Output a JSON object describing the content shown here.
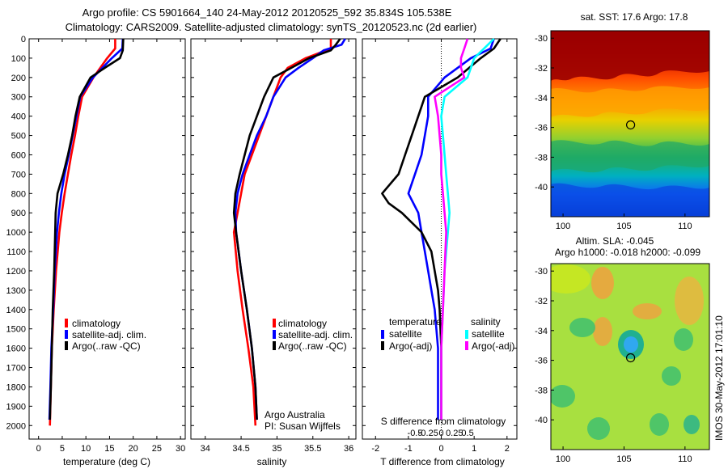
{
  "header": {
    "line1": "Argo profile: CS 5901664_140 24-May-2012 20120525_592 35.834S 105.538E",
    "line2": "Climatology: CARS2009. Satellite-adjusted climatology: synTS_20120523.nc (2d earlier)"
  },
  "credits": {
    "org": "Argo Australia",
    "pi": "PI: Susan Wijffels"
  },
  "timestamp": "IMOS 30-May-2012 17:01:10",
  "colors": {
    "climatology": "#ff0000",
    "satellite": "#0000ff",
    "argo": "#000000",
    "sal_satellite": "#00ffff",
    "sal_argo": "#ff00ff"
  },
  "chart_data": [
    {
      "type": "line",
      "xlabel": "temperature (deg C)",
      "ylabel": "",
      "xlim": [
        -2,
        31
      ],
      "ylim": [
        2070,
        0
      ],
      "xticks": [
        "0",
        "5",
        "10",
        "15",
        "20",
        "25",
        "30"
      ],
      "xtick_values": [
        0,
        5,
        10,
        15,
        20,
        25,
        30
      ],
      "yticks": [
        "0",
        "100",
        "200",
        "300",
        "400",
        "500",
        "600",
        "700",
        "800",
        "900",
        "1000",
        "1100",
        "1200",
        "1300",
        "1400",
        "1500",
        "1600",
        "1700",
        "1800",
        "1900",
        "2000"
      ],
      "ytick_values": [
        0,
        100,
        200,
        300,
        400,
        500,
        600,
        700,
        800,
        900,
        1000,
        1100,
        1200,
        1300,
        1400,
        1500,
        1600,
        1700,
        1800,
        1900,
        2000
      ],
      "legend": [
        "climatology",
        "satellite-adj. clim.",
        "Argo(..raw -QC)"
      ],
      "series": [
        {
          "name": "climatology",
          "color": "#ff0000",
          "y": [
            0,
            50,
            100,
            200,
            300,
            400,
            500,
            600,
            700,
            800,
            900,
            1000,
            1200,
            1400,
            1600,
            1800,
            2000
          ],
          "x": [
            16.2,
            16.2,
            14.5,
            11.6,
            9.2,
            8.4,
            7.7,
            6.9,
            6.2,
            5.5,
            4.9,
            4.4,
            3.7,
            3.2,
            2.8,
            2.6,
            2.4
          ]
        },
        {
          "name": "satellite-adj. clim.",
          "color": "#0000ff",
          "y": [
            0,
            50,
            100,
            200,
            300,
            400,
            500,
            600,
            700,
            800,
            900,
            1000,
            1200,
            1400,
            1600,
            1800,
            1970
          ],
          "x": [
            17.8,
            17.7,
            15.5,
            11.5,
            8.8,
            8.0,
            7.2,
            6.4,
            5.5,
            4.8,
            4.3,
            3.9,
            3.4,
            3.1,
            2.7,
            2.5,
            2.3
          ]
        },
        {
          "name": "Argo(..raw -QC)",
          "color": "#000000",
          "y": [
            0,
            60,
            100,
            150,
            200,
            300,
            400,
            500,
            600,
            700,
            800,
            900,
            1000,
            1200,
            1400,
            1600,
            1800,
            1970
          ],
          "x": [
            17.9,
            17.8,
            17.2,
            14.0,
            11.0,
            8.7,
            7.8,
            7.1,
            6.2,
            5.2,
            4.0,
            3.6,
            3.5,
            3.3,
            3.0,
            2.8,
            2.6,
            2.4
          ]
        }
      ]
    },
    {
      "type": "line",
      "xlabel": "salinity",
      "xlim": [
        33.8,
        36.1
      ],
      "ylim": [
        2070,
        0
      ],
      "xticks": [
        "34",
        "34.5",
        "35",
        "35.5",
        "36"
      ],
      "xtick_values": [
        34,
        34.5,
        35,
        35.5,
        36
      ],
      "legend": [
        "climatology",
        "satellite-adj. clim.",
        "Argo(..raw -QC)"
      ],
      "series": [
        {
          "name": "climatology",
          "color": "#ff0000",
          "y": [
            0,
            50,
            100,
            150,
            200,
            300,
            400,
            500,
            600,
            700,
            800,
            900,
            1000,
            1200,
            1400,
            1600,
            1800,
            2000
          ],
          "x": [
            35.75,
            35.75,
            35.4,
            35.15,
            35.05,
            34.95,
            34.85,
            34.75,
            34.65,
            34.55,
            34.5,
            34.45,
            34.4,
            34.45,
            34.52,
            34.6,
            34.67,
            34.7
          ]
        },
        {
          "name": "satellite-adj. clim.",
          "color": "#0000ff",
          "y": [
            0,
            30,
            60,
            100,
            150,
            200,
            300,
            400,
            500,
            600,
            700,
            800,
            900,
            1000,
            1200,
            1400,
            1600,
            1800,
            1970
          ],
          "x": [
            35.95,
            35.9,
            35.65,
            35.5,
            35.3,
            35.12,
            34.95,
            34.85,
            34.72,
            34.62,
            34.52,
            34.45,
            34.42,
            34.43,
            34.5,
            34.58,
            34.65,
            34.7,
            34.72
          ]
        },
        {
          "name": "Argo(..raw -QC)",
          "color": "#000000",
          "y": [
            0,
            30,
            60,
            100,
            150,
            200,
            300,
            400,
            500,
            600,
            700,
            800,
            900,
            1000,
            1200,
            1400,
            1600,
            1800,
            1970
          ],
          "x": [
            35.88,
            35.82,
            35.75,
            35.45,
            35.2,
            34.95,
            34.82,
            34.72,
            34.62,
            34.55,
            34.48,
            34.42,
            34.4,
            34.43,
            34.5,
            34.58,
            34.65,
            34.7,
            34.72
          ]
        }
      ]
    },
    {
      "type": "line",
      "xlabel": "T difference from climatology",
      "xlabel_top": "S difference from climatology",
      "xlim": [
        -2.4,
        2.3
      ],
      "ylim": [
        2070,
        0
      ],
      "xticks": [
        "-2",
        "-1",
        "0",
        "1",
        "2"
      ],
      "xtick_values": [
        -2,
        -1,
        0,
        1,
        2
      ],
      "xticks_top": [
        "-0.5",
        "-0.25",
        "0",
        "0.25",
        "0.5"
      ],
      "legend_titles": [
        "temperature",
        "salinity"
      ],
      "legend": [
        "satellite",
        "Argo(-adj)",
        "satellite",
        "Argo(-adj)"
      ],
      "series": [
        {
          "name": "satellite",
          "color": "#0000ff",
          "y": [
            0,
            50,
            100,
            200,
            300,
            400,
            500,
            600,
            700,
            800,
            900,
            1000,
            1100,
            1200,
            1300,
            1400,
            1600,
            1800,
            1970
          ],
          "x": [
            1.6,
            1.5,
            0.9,
            0.1,
            -0.4,
            -0.4,
            -0.5,
            -0.6,
            -0.8,
            -1.0,
            -0.7,
            -0.6,
            -0.5,
            -0.4,
            -0.3,
            -0.2,
            -0.1,
            -0.1,
            -0.1
          ]
        },
        {
          "name": "Argo(-adj)",
          "color": "#000000",
          "y": [
            0,
            50,
            100,
            200,
            250,
            300,
            400,
            500,
            600,
            700,
            800,
            850,
            900,
            1000,
            1100,
            1200,
            1300,
            1400,
            1600,
            1800,
            1970
          ],
          "x": [
            1.8,
            1.6,
            1.2,
            0.5,
            0.0,
            -0.5,
            -0.7,
            -0.9,
            -1.1,
            -1.3,
            -1.8,
            -1.6,
            -1.2,
            -0.6,
            -0.3,
            -0.2,
            -0.1,
            -0.05,
            0.0,
            0.0,
            0.0
          ]
        },
        {
          "name": "satellite",
          "color": "#00ffff",
          "y": [
            0,
            100,
            200,
            300,
            400,
            500,
            600,
            700,
            800,
            900,
            1000,
            1200,
            1400,
            1600,
            1800,
            1970
          ],
          "x": [
            1.6,
            1.0,
            0.8,
            0.1,
            0.0,
            0.05,
            0.1,
            0.15,
            0.2,
            0.25,
            0.2,
            0.1,
            0.05,
            0.0,
            0.0,
            0.0
          ]
        },
        {
          "name": "Argo(-adj)",
          "color": "#ff00ff",
          "y": [
            0,
            50,
            100,
            150,
            200,
            300,
            400,
            500,
            600,
            700,
            800,
            900,
            1000,
            1200,
            1400,
            1600,
            1800,
            1970
          ],
          "x": [
            0.8,
            0.7,
            0.6,
            0.6,
            0.7,
            -0.2,
            -0.1,
            -0.05,
            0.0,
            0.0,
            0.05,
            0.1,
            0.15,
            0.1,
            0.05,
            0.0,
            0.0,
            0.0
          ]
        }
      ]
    },
    {
      "type": "heatmap",
      "title": "sat. SST: 17.6 Argo: 17.8",
      "xlim": [
        99,
        112
      ],
      "ylim": [
        -42,
        -29.5
      ],
      "xticks": [
        "100",
        "105",
        "110"
      ],
      "yticks": [
        "-30",
        "-32",
        "-34",
        "-36",
        "-38",
        "-40"
      ],
      "marker": {
        "lon": 105.54,
        "lat": -35.83
      }
    },
    {
      "type": "heatmap",
      "title": "Altim. SLA: -0.045",
      "subtitle": "Argo h1000: -0.018 h2000: -0.099",
      "xlim": [
        99,
        112
      ],
      "ylim": [
        -42,
        -29.5
      ],
      "xticks": [
        "100",
        "105",
        "110"
      ],
      "yticks": [
        "-30",
        "-32",
        "-34",
        "-36",
        "-38",
        "-40"
      ],
      "marker": {
        "lon": 105.54,
        "lat": -35.83
      }
    }
  ]
}
